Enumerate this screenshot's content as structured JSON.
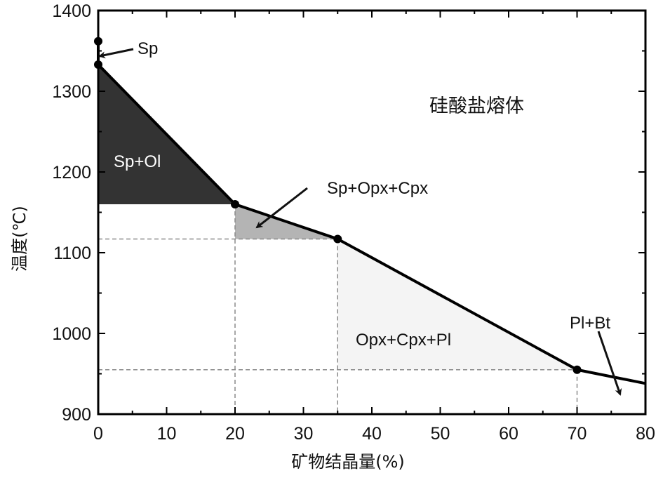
{
  "chart_data": {
    "type": "line",
    "xlabel": "矿物结晶量(%)",
    "ylabel": "温度(℃)",
    "xlim": [
      0,
      80
    ],
    "ylim": [
      900,
      1400
    ],
    "xticks": [
      0,
      10,
      20,
      30,
      40,
      50,
      60,
      70,
      80
    ],
    "yticks": [
      900,
      1000,
      1100,
      1200,
      1300,
      1400
    ],
    "grid": false,
    "series": [
      {
        "values_x": [
          0,
          0,
          20,
          35,
          70,
          80
        ],
        "values_y": [
          1362,
          1333,
          1160,
          1117,
          955,
          938
        ]
      }
    ],
    "points": [
      {
        "x": 0,
        "y": 1362
      },
      {
        "x": 0,
        "y": 1333
      },
      {
        "x": 20,
        "y": 1160
      },
      {
        "x": 35,
        "y": 1117
      },
      {
        "x": 70,
        "y": 955
      }
    ],
    "reference_lines": {
      "horizontal": [
        1117,
        955
      ],
      "vertical": [
        20,
        35,
        70
      ]
    },
    "regions": [
      {
        "label": "Sp+Ol",
        "color": "#333333"
      },
      {
        "label": "Sp+Opx+Cpx",
        "color": "#b4b4b4"
      },
      {
        "label": "Opx+Cpx+Pl",
        "color": "#f4f4f4"
      }
    ],
    "annotations": {
      "sp": "Sp",
      "melt": "硅酸盐熔体",
      "plbt": "Pl+Bt"
    }
  }
}
